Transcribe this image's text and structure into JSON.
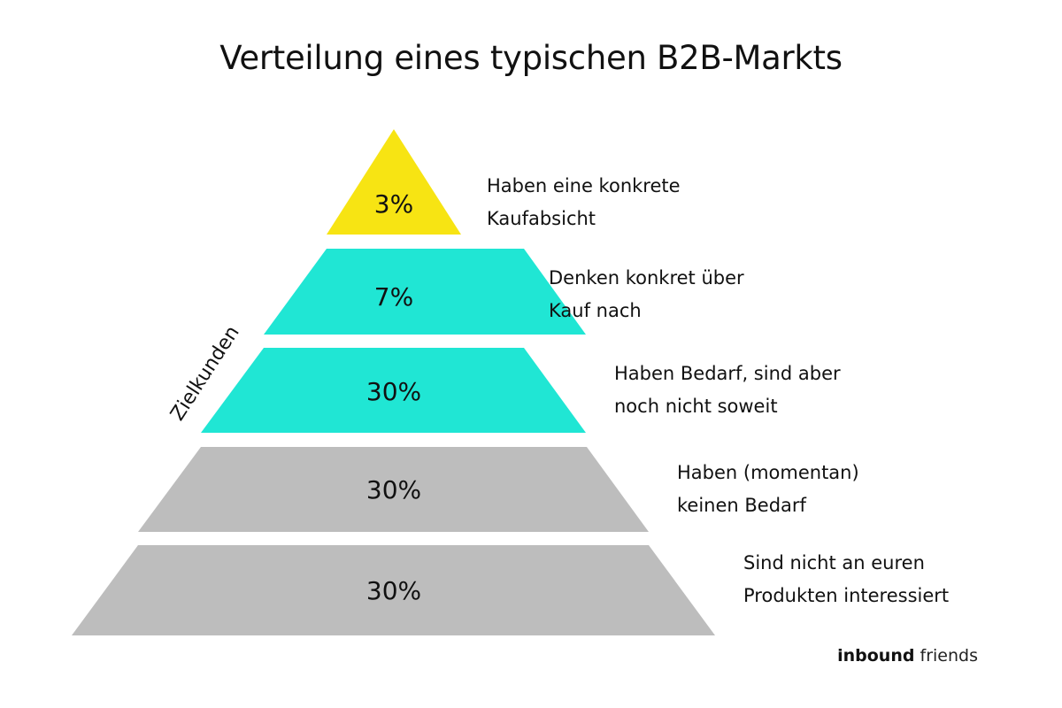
{
  "title": "Verteilung eines typischen B2B-Markts",
  "side_label": "Zielkunden",
  "brand": {
    "part1": "inbound",
    "part2": "friends"
  },
  "colors": {
    "yellow": "#f7e413",
    "turquoise": "#20e6d4",
    "gray": "#bdbdbd"
  },
  "tiers": [
    {
      "percent": "3%",
      "line1": "Haben eine konkrete",
      "line2": "Kaufabsicht",
      "color": "#f7e413"
    },
    {
      "percent": "7%",
      "line1": "Denken konkret über",
      "line2": "Kauf nach",
      "color": "#20e6d4"
    },
    {
      "percent": "30%",
      "line1": "Haben Bedarf, sind aber",
      "line2": "noch nicht soweit",
      "color": "#20e6d4"
    },
    {
      "percent": "30%",
      "line1": "Haben (momentan)",
      "line2": "keinen Bedarf",
      "color": "#bdbdbd"
    },
    {
      "percent": "30%",
      "line1": "Sind nicht an euren",
      "line2": "Produkten interessiert",
      "color": "#bdbdbd"
    }
  ]
}
